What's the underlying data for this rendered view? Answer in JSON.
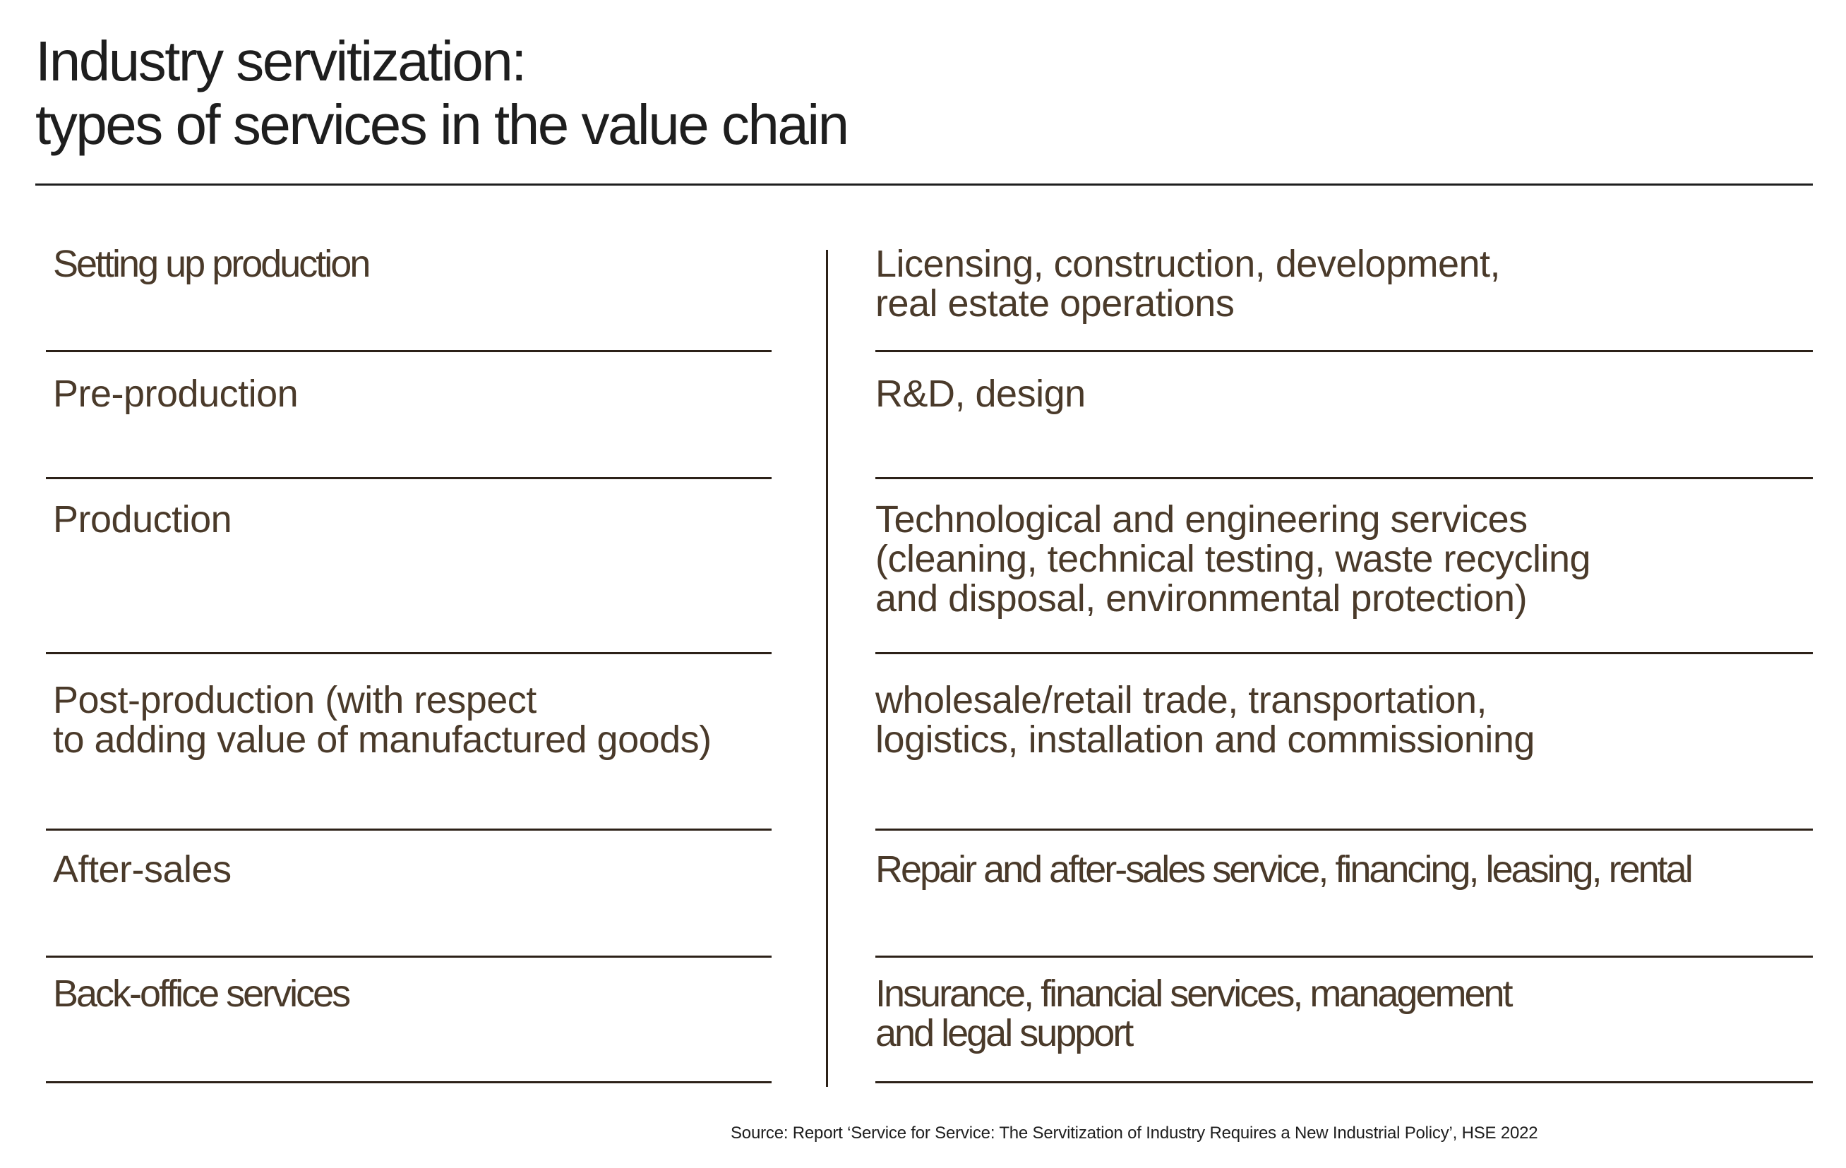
{
  "title": {
    "line1": "Industry servitization:",
    "line2": "types of services in the value chain"
  },
  "rows": [
    {
      "stage": [
        "Setting up production"
      ],
      "services": [
        "Licensing, construction, development,",
        "real estate operations"
      ]
    },
    {
      "stage": [
        "Pre-production"
      ],
      "services": [
        "R&D, design"
      ]
    },
    {
      "stage": [
        "Production"
      ],
      "services": [
        "Technological and engineering services",
        "(cleaning, technical testing, waste recycling",
        "and disposal, environmental protection)"
      ]
    },
    {
      "stage": [
        "Post-production (with respect",
        "to adding value of manufactured goods)"
      ],
      "services": [
        "wholesale/retail trade, transportation,",
        "logistics, installation and commissioning"
      ]
    },
    {
      "stage": [
        "After-sales"
      ],
      "services": [
        "Repair and after-sales service, financing, leasing, rental"
      ]
    },
    {
      "stage": [
        "Back-office services"
      ],
      "services": [
        "Insurance, financial services, management",
        "and legal support"
      ]
    }
  ],
  "source": "Source: Report ‘Service for Service: The Servitization of Industry Requires a New Industrial Policy’, HSE 2022",
  "colors": {
    "title_text": "#1e1e1e",
    "cell_text": "#4a3a2a",
    "rules": "#2c2118"
  }
}
